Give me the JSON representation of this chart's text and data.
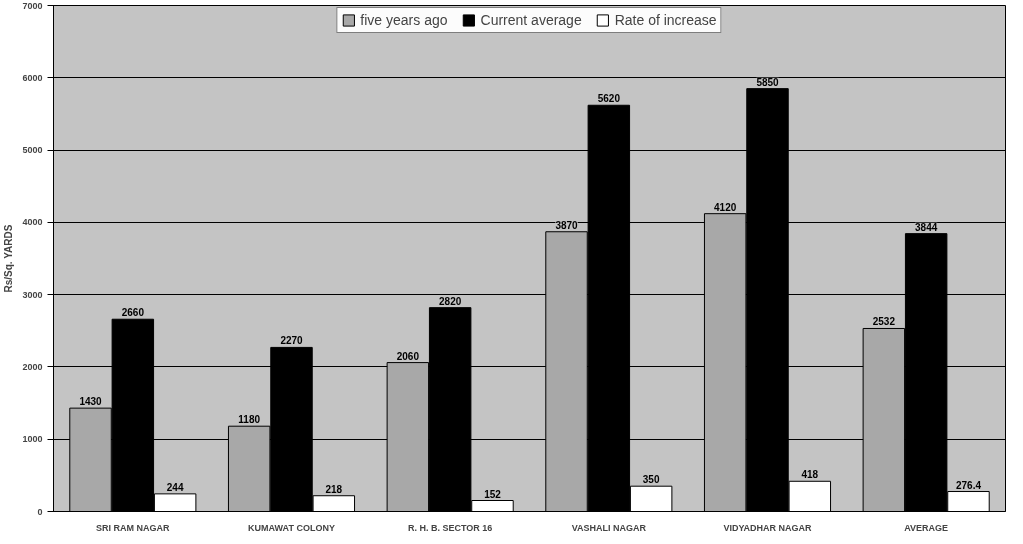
{
  "chart_data": {
    "type": "bar",
    "ylabel": "Rs/Sq. YARDS",
    "categories": [
      "SRI RAM NAGAR",
      "KUMAWAT COLONY",
      "R. H. B. SECTOR 16",
      "VASHALI NAGAR",
      "VIDYADHAR NAGAR",
      "AVERAGE"
    ],
    "series": [
      {
        "name": "five years ago",
        "color": "#a8a8a8",
        "values": [
          1430,
          1180,
          2060,
          3870,
          4120,
          2532
        ]
      },
      {
        "name": "Current average",
        "color": "#000000",
        "values": [
          2660,
          2270,
          2820,
          5620,
          5850,
          3844
        ]
      },
      {
        "name": "Rate of increase",
        "color": "#ffffff",
        "values": [
          244,
          218,
          152,
          350,
          418,
          276.4
        ]
      }
    ],
    "ylim": [
      0,
      7000
    ],
    "yticks": [
      0,
      1000,
      2000,
      3000,
      4000,
      5000,
      6000,
      7000
    ],
    "grid": "y",
    "legend": "top",
    "data_labels": true
  }
}
